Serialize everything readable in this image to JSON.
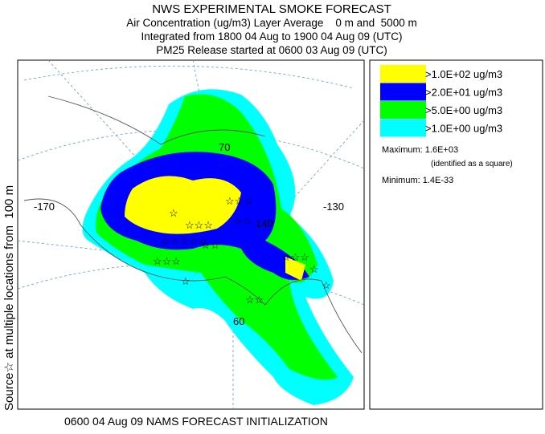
{
  "header": {
    "lines": [
      "NWS EXPERIMENTAL SMOKE FORECAST",
      "Air Concentration (ug/m3) Layer Average    0 m and  5000 m",
      "Integrated from 1800 04 Aug to 1900 04 Aug 09 (UTC)",
      "PM25 Release started at 0600 03 Aug 09 (UTC)"
    ]
  },
  "legend": {
    "items": [
      {
        "label": ">1.0E+02 ug/m3",
        "color": "#ffff00"
      },
      {
        "label": ">2.0E+01 ug/m3",
        "color": "#0000ff"
      },
      {
        "label": ">5.0E+00 ug/m3",
        "color": "#00ff00"
      },
      {
        "label": ">1.0E+00 ug/m3",
        "color": "#00ffff"
      }
    ],
    "maximum": "Maximum: 1.6E+03",
    "maximum_note": "(identified as a square)",
    "minimum": "Minimum: 1.4E-33"
  },
  "map": {
    "grid_labels": [
      "-170",
      "-130",
      "70",
      "140",
      "60"
    ]
  },
  "side_label": "Source☆ at multiple locations from  100 m",
  "footer": "0600 04 Aug 09 NAMS FORECAST INITIALIZATION"
}
